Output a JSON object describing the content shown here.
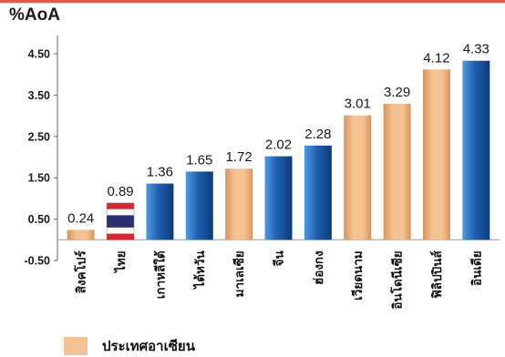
{
  "header": {
    "unit_label": "%AoA"
  },
  "legend": {
    "label": "ประเทศอาเซียน"
  },
  "chart_data": {
    "type": "bar",
    "categories": [
      "สิงคโปร์",
      "ไทย",
      "เกาหลีใต้",
      "ไต้หวัน",
      "มาเลเซีย",
      "จีน",
      "ฮ่องกง",
      "เวียดนาม",
      "อินโดนีเซีย",
      "ฟิลิปปินส์",
      "อินเดีย"
    ],
    "values": [
      0.24,
      0.89,
      1.36,
      1.65,
      1.72,
      2.02,
      2.28,
      3.01,
      3.29,
      4.12,
      4.33
    ],
    "value_labels": [
      "0.24",
      "0.89",
      "1.36",
      "1.65",
      "1.72",
      "2.02",
      "2.28",
      "3.01",
      "3.29",
      "4.12",
      "4.33"
    ],
    "bar_styles": [
      "asean",
      "thai-flag",
      "other",
      "other",
      "asean",
      "other",
      "other",
      "asean",
      "asean",
      "asean",
      "other"
    ],
    "yticks": [
      "-0.50",
      "0.50",
      "1.50",
      "2.50",
      "3.50",
      "4.50"
    ],
    "ylim": [
      -0.5,
      4.5
    ],
    "grid": false,
    "legend_position": "bottom-left",
    "colors": {
      "asean": "#f5c294",
      "asean_dark": "#d9955a",
      "other": "#1f5fb0",
      "other_light": "#4f9be0",
      "other_dark": "#0d3a78",
      "thai_red": "#d8252f",
      "thai_blue": "#2a2e73",
      "thai_white": "#ffffff",
      "axis": "#666666"
    }
  }
}
